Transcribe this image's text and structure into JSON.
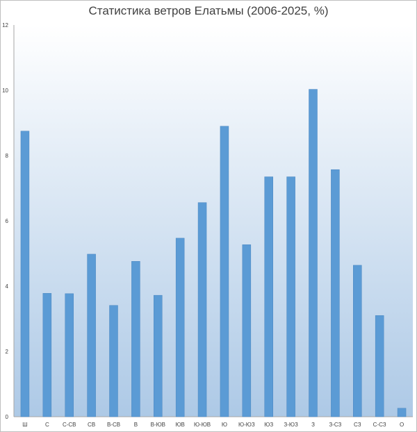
{
  "chart_data": {
    "type": "bar",
    "title": "Статистика ветров Елатьмы (2006-2025, %)",
    "xlabel": "",
    "ylabel": "",
    "ylim": [
      0,
      12
    ],
    "yticks": [
      0,
      2,
      4,
      6,
      8,
      10,
      12
    ],
    "grid": false,
    "legend": "none",
    "categories": [
      "Ш",
      "С",
      "С-СВ",
      "СВ",
      "В-СВ",
      "В",
      "В-ЮВ",
      "ЮВ",
      "Ю-ЮВ",
      "Ю",
      "Ю-ЮЗ",
      "ЮЗ",
      "З-ЮЗ",
      "З",
      "З-СЗ",
      "СЗ",
      "С-СЗ",
      "О"
    ],
    "values": [
      8.75,
      3.78,
      3.77,
      4.98,
      3.41,
      4.76,
      3.72,
      5.47,
      6.56,
      8.9,
      5.27,
      7.35,
      7.35,
      10.03,
      7.57,
      4.64,
      3.1,
      0.26
    ],
    "colors": {
      "bar": "#5b9bd5",
      "bar_edge": "#4a86c0",
      "plot_bg_top": "#ffffff",
      "plot_bg_bottom": "#adc9e6"
    }
  }
}
